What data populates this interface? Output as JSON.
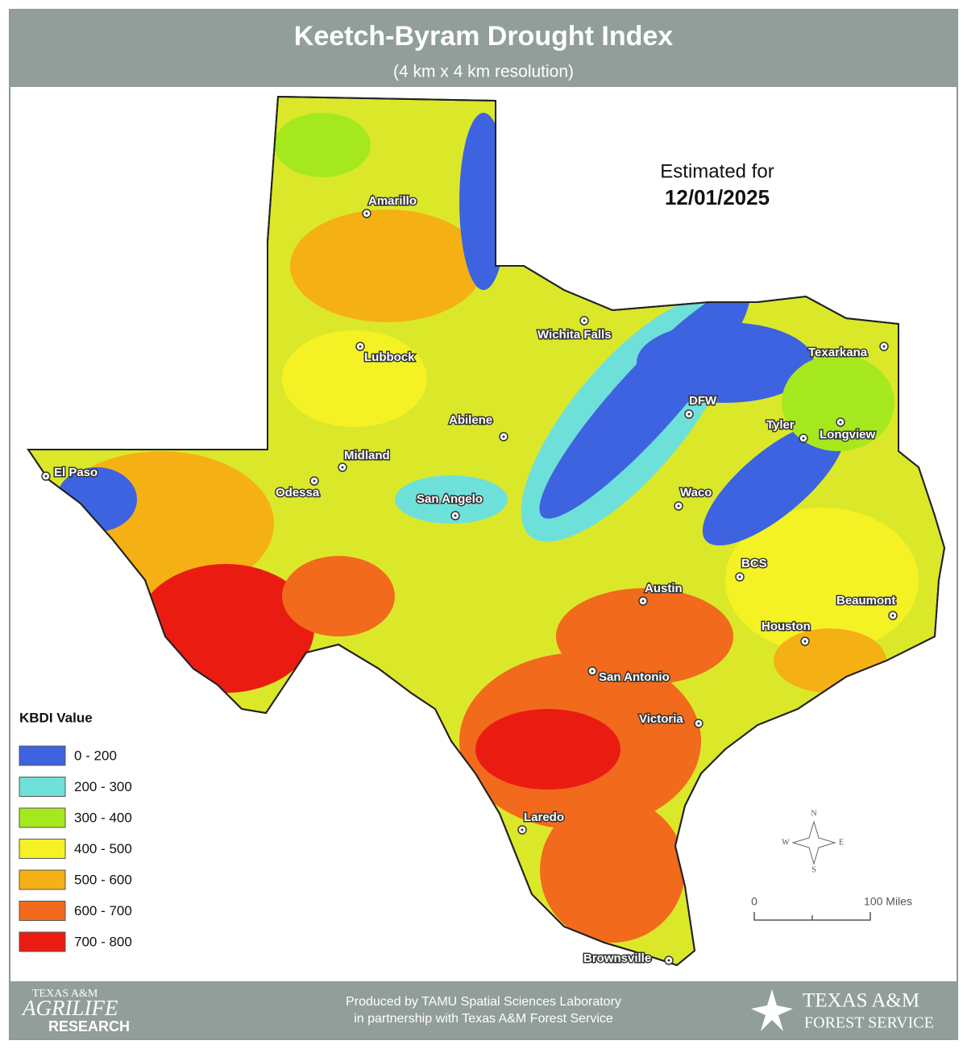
{
  "header": {
    "title": "Keetch-Byram Drought Index",
    "subtitle": "(4 km x 4 km resolution)"
  },
  "estimate": {
    "label": "Estimated for",
    "date": "12/01/2025"
  },
  "cities": [
    "Amarillo",
    "Lubbock",
    "Wichita Falls",
    "Texarkana",
    "DFW",
    "Tyler",
    "Longview",
    "Abilene",
    "Midland",
    "Odessa",
    "El Paso",
    "San Angelo",
    "Waco",
    "BCS",
    "Austin",
    "Beaumont",
    "Houston",
    "San Antonio",
    "Victoria",
    "Laredo",
    "Brownsville"
  ],
  "legend": {
    "title": "KBDI Value",
    "items": [
      {
        "label": "0 - 200",
        "color": "#3d63e0"
      },
      {
        "label": "200 - 300",
        "color": "#6ee0da"
      },
      {
        "label": "300 - 400",
        "color": "#a6e81e"
      },
      {
        "label": "400 - 500",
        "color": "#f4f224"
      },
      {
        "label": "500 - 600",
        "color": "#f5b014"
      },
      {
        "label": "600 - 700",
        "color": "#f26a1b"
      },
      {
        "label": "700 - 800",
        "color": "#ea1c12"
      }
    ]
  },
  "compass": {
    "n": "N",
    "e": "E",
    "s": "S",
    "w": "W"
  },
  "scale_bar": {
    "start": "0",
    "end": "100 Miles"
  },
  "footer": {
    "credit_line1": "Produced by TAMU Spatial Sciences Laboratory",
    "credit_line2": "in partnership with Texas A&M Forest Service",
    "left_logo": {
      "line1": "TEXAS A&M",
      "line2": "AGRILIFE",
      "line3": "RESEARCH"
    },
    "right_logo": {
      "line1": "TEXAS A&M",
      "line2": "FOREST SERVICE"
    }
  }
}
